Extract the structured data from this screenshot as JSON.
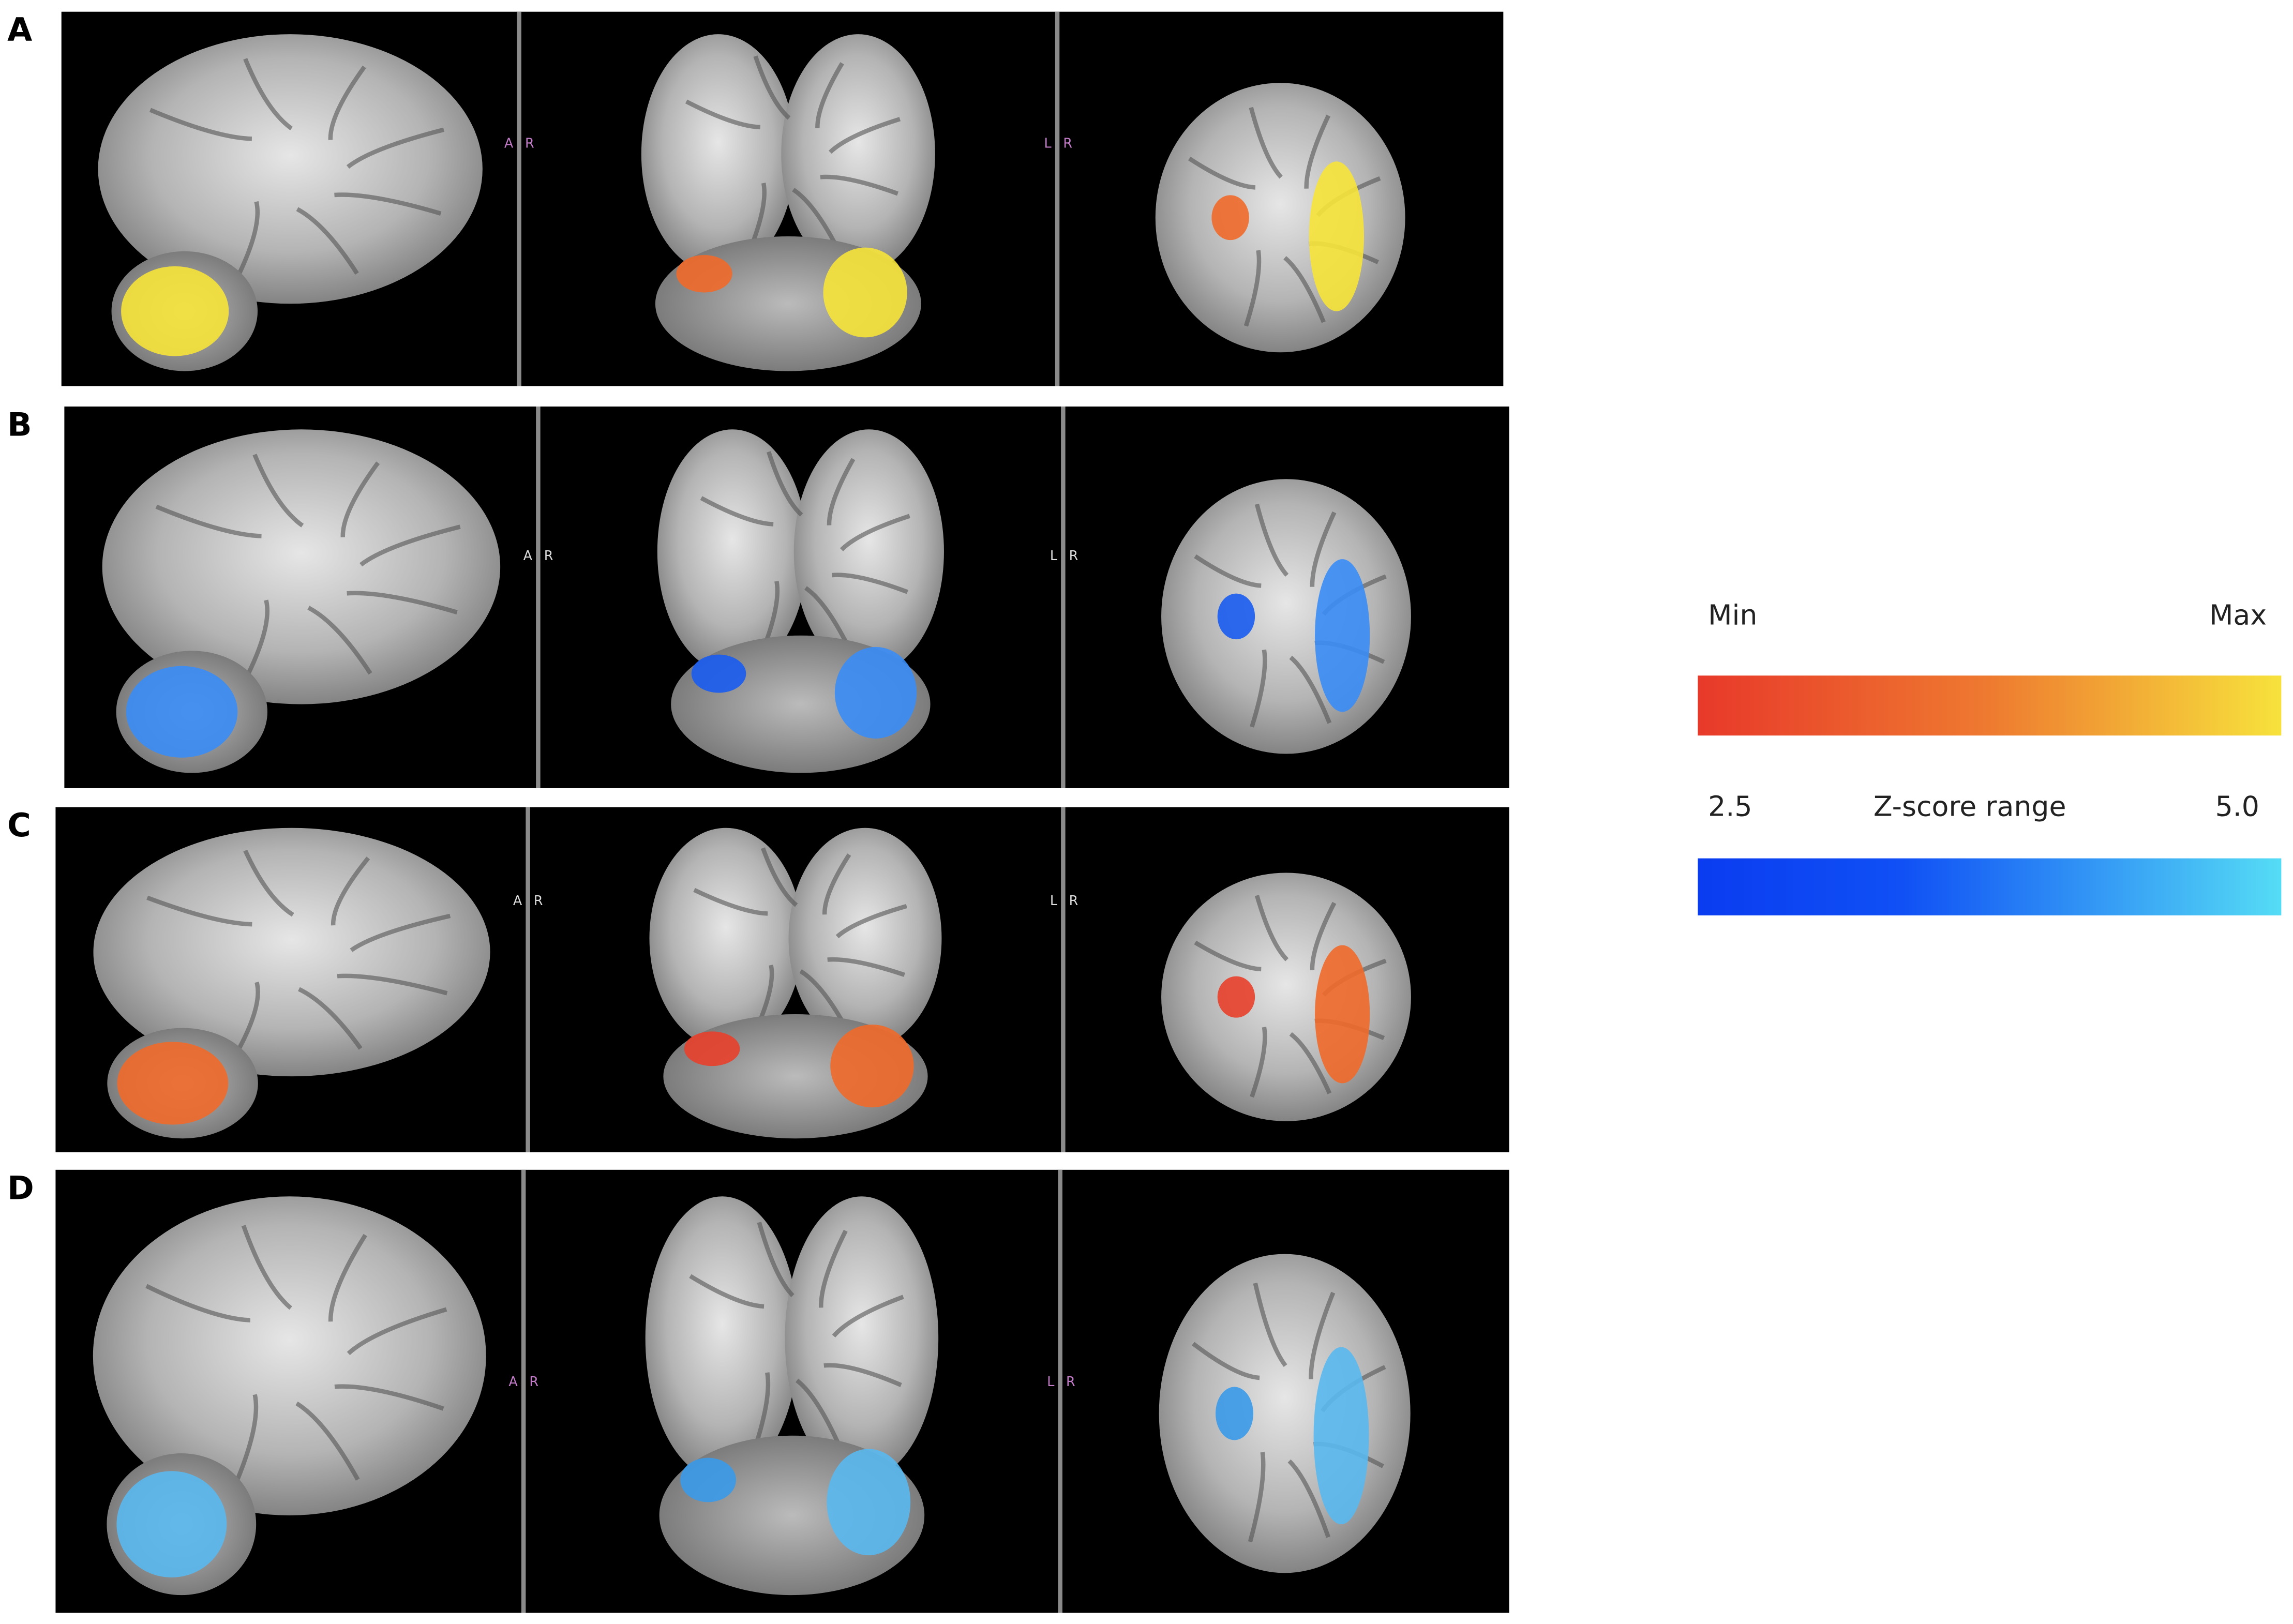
{
  "panels": [
    {
      "label": "A",
      "sagittal_divider": [
        "A",
        "R"
      ],
      "coronal_divider": [
        "L",
        "R"
      ]
    },
    {
      "label": "B",
      "sagittal_divider": [
        "A",
        "R"
      ],
      "coronal_divider": [
        "L",
        "R"
      ]
    },
    {
      "label": "C",
      "sagittal_divider": [
        "A",
        "R"
      ],
      "coronal_divider": [
        "L",
        "R"
      ]
    },
    {
      "label": "D",
      "sagittal_divider": [
        "A",
        "R"
      ],
      "coronal_divider": [
        "L",
        "R"
      ]
    }
  ],
  "legend": {
    "min_label": "Min",
    "max_label": "Max",
    "low": "2.5",
    "title": "Z-score range",
    "high": "5.0"
  }
}
